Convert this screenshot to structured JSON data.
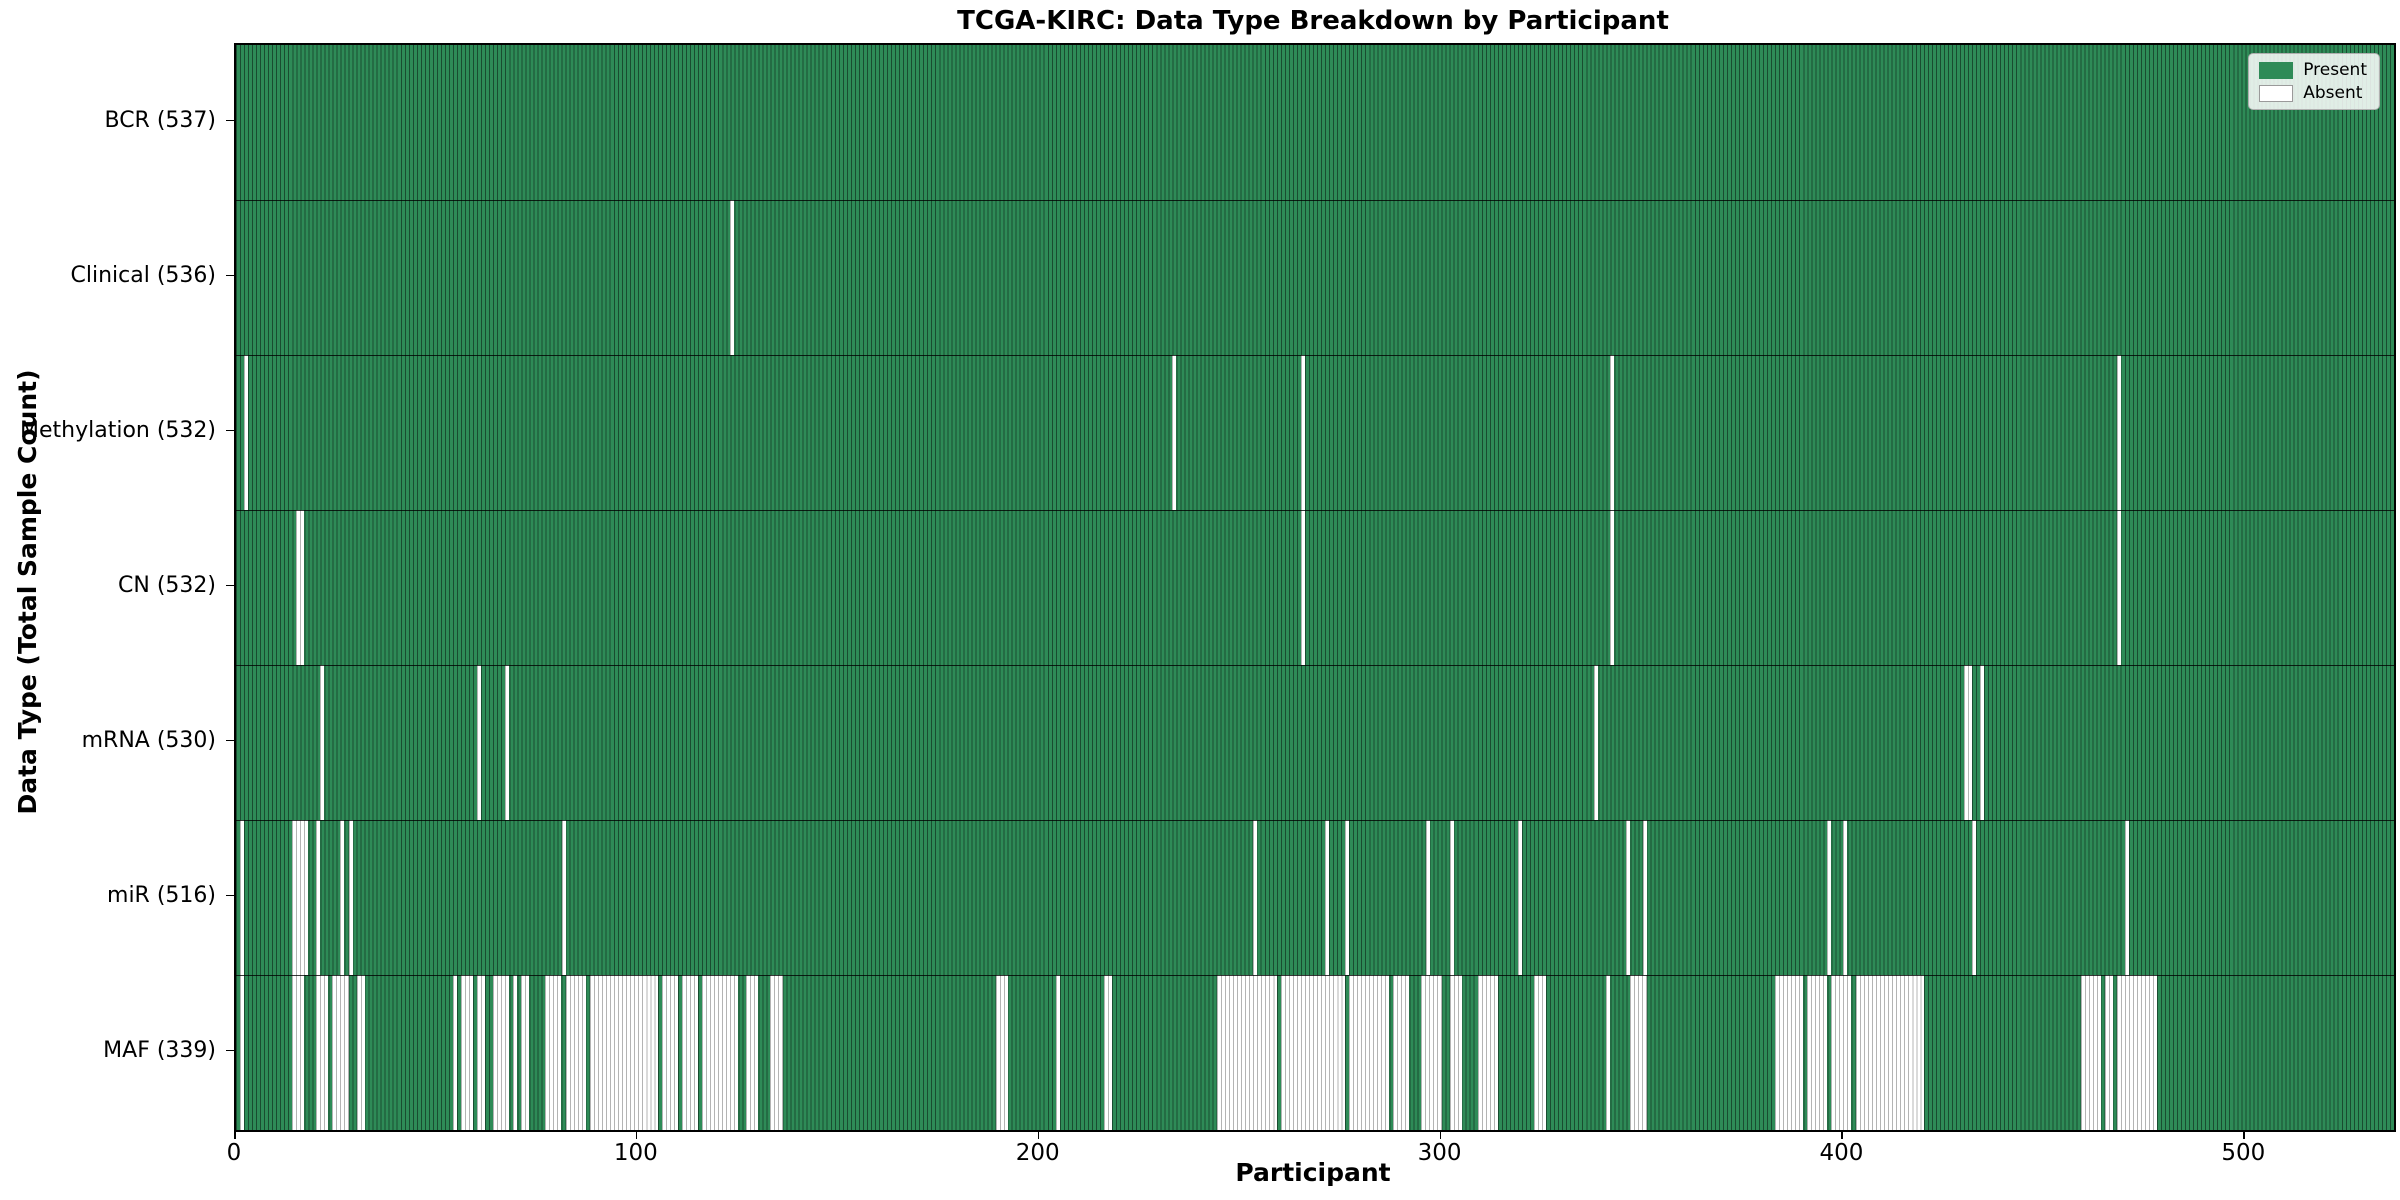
{
  "figure": {
    "title": "TCGA-KIRC: Data Type Breakdown by Participant",
    "xlabel": "Participant",
    "ylabel": "Data Type (Total Sample Count)"
  },
  "legend": {
    "present_label": "Present",
    "absent_label": "Absent"
  },
  "chart_data": {
    "type": "heatmap",
    "title": "TCGA-KIRC: Data Type Breakdown by Participant",
    "xlabel": "Participant",
    "ylabel": "Data Type (Total Sample Count)",
    "x_max": 537,
    "x_ticks": [
      0,
      100,
      200,
      300,
      400,
      500
    ],
    "grid": false,
    "legend_position": "upper right",
    "legend_entries": [
      {
        "label": "Present",
        "color": "#2e8b57"
      },
      {
        "label": "Absent",
        "color": "#ffffff"
      }
    ],
    "colors": {
      "present_fill": "#2e8b57",
      "present_edge": "rgba(0,0,0,0.45)",
      "absent_fill": "#ffffff",
      "absent_edge": "#b4b4b4",
      "row_separator": "rgba(0,0,0,0.78)",
      "axis": "#000000"
    },
    "rows": [
      {
        "data_type": "BCR",
        "label": "BCR (537)",
        "present_count": 537,
        "absent_ranges": []
      },
      {
        "data_type": "Clinical",
        "label": "Clinical (536)",
        "present_count": 536,
        "absent_ranges": [
          [
            123,
            123
          ]
        ]
      },
      {
        "data_type": "Methylation",
        "label": "Methylation (532)",
        "present_count": 532,
        "absent_ranges": [
          [
            2,
            2
          ],
          [
            233,
            233
          ],
          [
            265,
            265
          ],
          [
            342,
            342
          ],
          [
            468,
            468
          ]
        ]
      },
      {
        "data_type": "CN",
        "label": "CN (532)",
        "present_count": 532,
        "absent_ranges": [
          [
            15,
            16
          ],
          [
            265,
            265
          ],
          [
            342,
            342
          ],
          [
            468,
            468
          ]
        ]
      },
      {
        "data_type": "mRNA",
        "label": "mRNA (530)",
        "present_count": 530,
        "absent_ranges": [
          [
            21,
            21
          ],
          [
            60,
            60
          ],
          [
            67,
            67
          ],
          [
            338,
            338
          ],
          [
            430,
            431
          ],
          [
            434,
            434
          ]
        ]
      },
      {
        "data_type": "miR",
        "label": "miR (516)",
        "present_count": 516,
        "absent_ranges": [
          [
            1,
            1
          ],
          [
            14,
            17
          ],
          [
            20,
            20
          ],
          [
            26,
            26
          ],
          [
            28,
            28
          ],
          [
            81,
            81
          ],
          [
            253,
            253
          ],
          [
            271,
            271
          ],
          [
            276,
            276
          ],
          [
            296,
            296
          ],
          [
            302,
            302
          ],
          [
            319,
            319
          ],
          [
            346,
            346
          ],
          [
            350,
            350
          ],
          [
            396,
            396
          ],
          [
            400,
            400
          ],
          [
            432,
            432
          ],
          [
            470,
            470
          ]
        ]
      },
      {
        "data_type": "MAF",
        "label": "MAF (339)",
        "present_count": 339,
        "absent_ranges": [
          [
            1,
            1
          ],
          [
            14,
            16
          ],
          [
            20,
            22
          ],
          [
            24,
            27
          ],
          [
            30,
            31
          ],
          [
            54,
            54
          ],
          [
            56,
            58
          ],
          [
            60,
            61
          ],
          [
            64,
            67
          ],
          [
            69,
            69
          ],
          [
            71,
            72
          ],
          [
            77,
            80
          ],
          [
            82,
            86
          ],
          [
            88,
            104
          ],
          [
            106,
            109
          ],
          [
            111,
            114
          ],
          [
            116,
            124
          ],
          [
            127,
            129
          ],
          [
            133,
            135
          ],
          [
            189,
            191
          ],
          [
            204,
            204
          ],
          [
            216,
            217
          ],
          [
            244,
            258
          ],
          [
            260,
            275
          ],
          [
            277,
            286
          ],
          [
            288,
            291
          ],
          [
            295,
            299
          ],
          [
            302,
            304
          ],
          [
            309,
            313
          ],
          [
            323,
            325
          ],
          [
            341,
            341
          ],
          [
            347,
            350
          ],
          [
            383,
            389
          ],
          [
            391,
            395
          ],
          [
            397,
            401
          ],
          [
            403,
            419
          ],
          [
            459,
            463
          ],
          [
            465,
            466
          ],
          [
            468,
            477
          ]
        ]
      }
    ]
  }
}
